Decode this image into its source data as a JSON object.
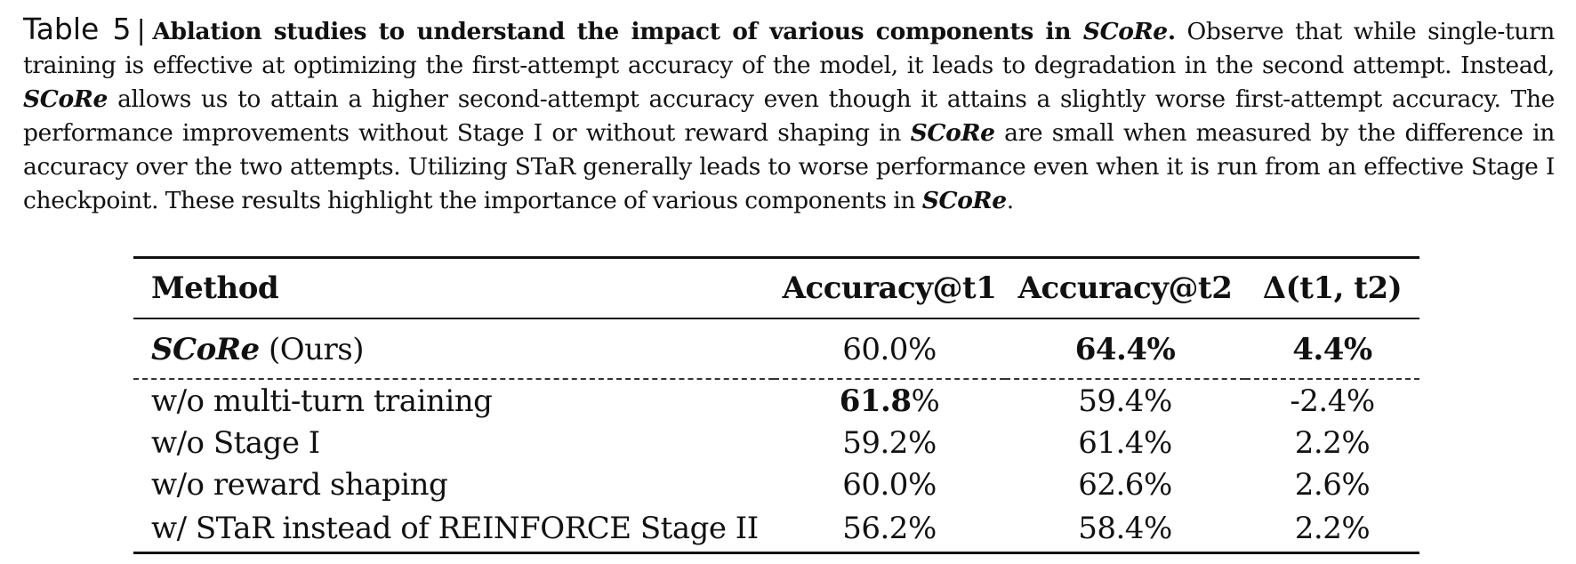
{
  "caption": {
    "table_number": "Table 5",
    "separator": "|",
    "title": "Ablation studies to understand the impact of various components in",
    "title_method": "SCoRe",
    "title_end": ".",
    "text_1": "Observe that while single-turn training is effective at optimizing the first-attempt accuracy of the model, it leads to degradation in the second attempt. Instead,",
    "method_1": "SCoRe",
    "text_2": "allows us to attain a higher second-attempt accuracy even though it attains a slightly worse first-attempt accuracy. The performance improvements without Stage I or without reward shaping in",
    "method_2": "SCoRe",
    "text_3": "are small when measured by the difference in accuracy over the two attempts. Utilizing STaR generally leads to worse performance even when it is run from an effective Stage I checkpoint. These results highlight the importance of various components in",
    "method_3": "SCoRe",
    "text_4": "."
  },
  "table": {
    "headers": [
      "Method",
      "Accuracy@t1",
      "Accuracy@t2",
      "Δ(t1, t2)"
    ],
    "ours": {
      "method": "SCoRe",
      "suffix": "(Ours)",
      "t1": "60.0%",
      "t2": "64.4%",
      "delta": "4.4%"
    },
    "rows": [
      {
        "method": "w/o multi-turn training",
        "t1_bold": "61.8",
        "t1_rest": "%",
        "t2": "59.4%",
        "delta": "-2.4%"
      },
      {
        "method": "w/o Stage I",
        "t1": "59.2%",
        "t2": "61.4%",
        "delta": "2.2%"
      },
      {
        "method": "w/o reward shaping",
        "t1": "60.0%",
        "t2": "62.6%",
        "delta": "2.6%"
      },
      {
        "method": "w/ STaR instead of REINFORCE Stage II",
        "t1": "56.2%",
        "t2": "58.4%",
        "delta": "2.2%"
      }
    ]
  }
}
